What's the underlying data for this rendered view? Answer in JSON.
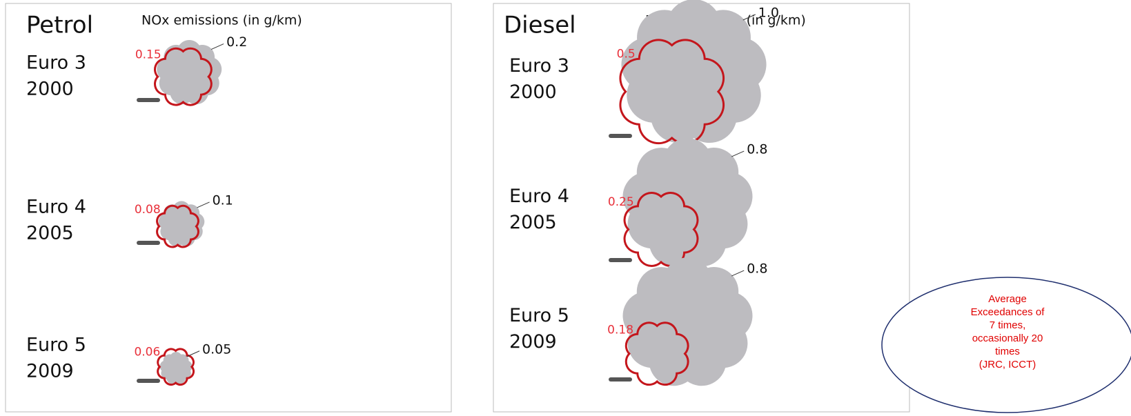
{
  "panels": [
    {
      "fuel": "Petrol",
      "unit": "NOx emissions (in g/km)",
      "rows": [
        {
          "standard": "Euro 3",
          "year": "2000",
          "limit": "0.15",
          "real": "0.2"
        },
        {
          "standard": "Euro 4",
          "year": "2005",
          "limit": "0.08",
          "real": "0.1"
        },
        {
          "standard": "Euro 5",
          "year": "2009",
          "limit": "0.06",
          "real": "0.05"
        }
      ]
    },
    {
      "fuel": "Diesel",
      "unit": "NOx emissions (in g/km)",
      "rows": [
        {
          "standard": "Euro 3",
          "year": "2000",
          "limit": "0.5",
          "real": "1.0"
        },
        {
          "standard": "Euro 4",
          "year": "2005",
          "limit": "0.25",
          "real": "0.8"
        },
        {
          "standard": "Euro 5",
          "year": "2009",
          "limit": "0.18",
          "real": "0.8"
        }
      ]
    }
  ],
  "note": {
    "lines": [
      "Average",
      "Exceedances  of",
      "7 times,",
      "occasionally 20",
      "times",
      "(JRC, ICCT)"
    ]
  }
}
